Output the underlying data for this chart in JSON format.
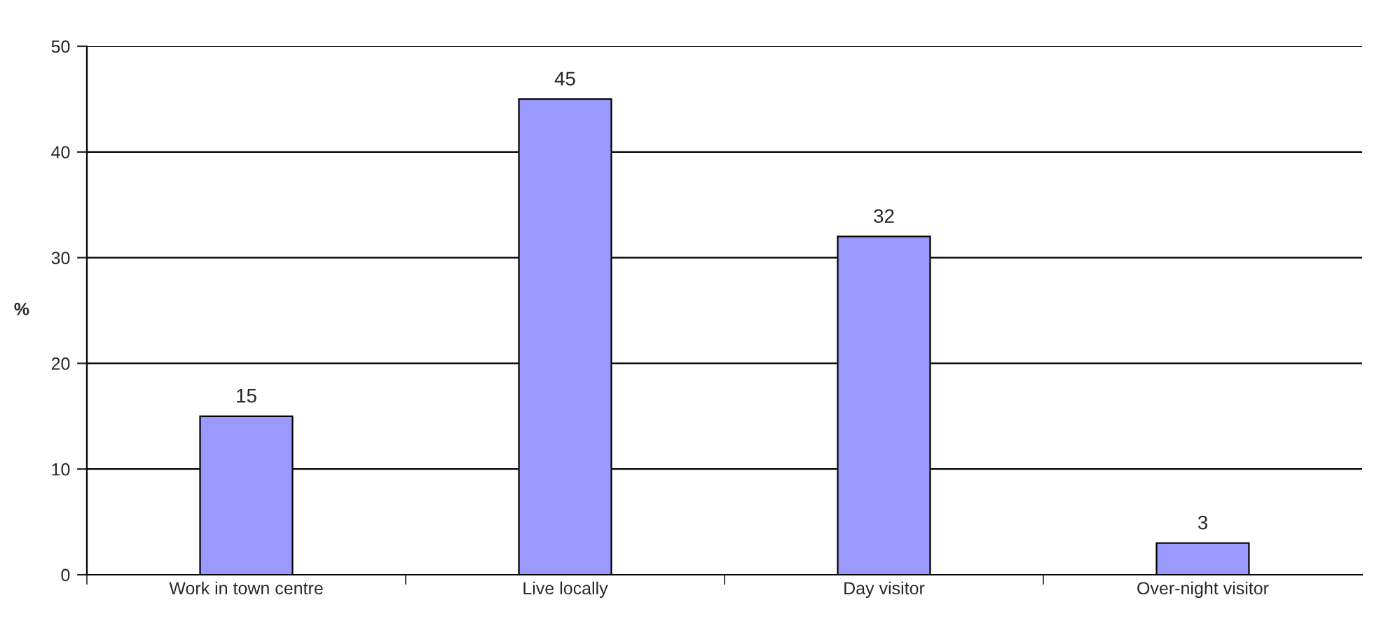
{
  "chart_data": {
    "type": "bar",
    "ylabel": "%",
    "categories": [
      "Work in town centre",
      "Live locally",
      "Day visitor",
      "Over-night visitor"
    ],
    "values": [
      15,
      45,
      32,
      3
    ],
    "color": "#9999ff",
    "ylim": [
      0,
      50
    ],
    "yticks": [
      0,
      10,
      20,
      30,
      40,
      50
    ],
    "grid": "y",
    "data_labels": true
  }
}
